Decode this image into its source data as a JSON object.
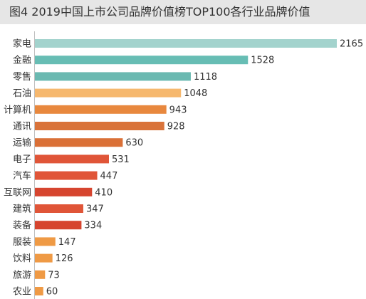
{
  "title": "图4  2019中国上市公司品牌价值榜TOP100各行业品牌价值",
  "chart_data": {
    "type": "bar",
    "orientation": "horizontal",
    "title": "图4  2019中国上市公司品牌价值榜TOP100各行业品牌价值",
    "categories": [
      "家电",
      "金融",
      "零售",
      "石油",
      "计算机",
      "通讯",
      "运输",
      "电子",
      "汽车",
      "互联网",
      "建筑",
      "装备",
      "服装",
      "饮料",
      "旅游",
      "农业"
    ],
    "values": [
      2165,
      1528,
      1118,
      1048,
      943,
      928,
      630,
      531,
      447,
      410,
      347,
      334,
      147,
      126,
      73,
      60
    ],
    "colors": [
      "#a3d3cd",
      "#67bdb4",
      "#6ab9b1",
      "#f6b86e",
      "#e8883e",
      "#d9733a",
      "#da7037",
      "#e05538",
      "#e05538",
      "#d6452f",
      "#e05538",
      "#d6452f",
      "#ef9a45",
      "#ef9a45",
      "#ef9a45",
      "#ef9a45"
    ],
    "xlim": [
      0,
      2165
    ],
    "grid": false,
    "legend": "none"
  }
}
